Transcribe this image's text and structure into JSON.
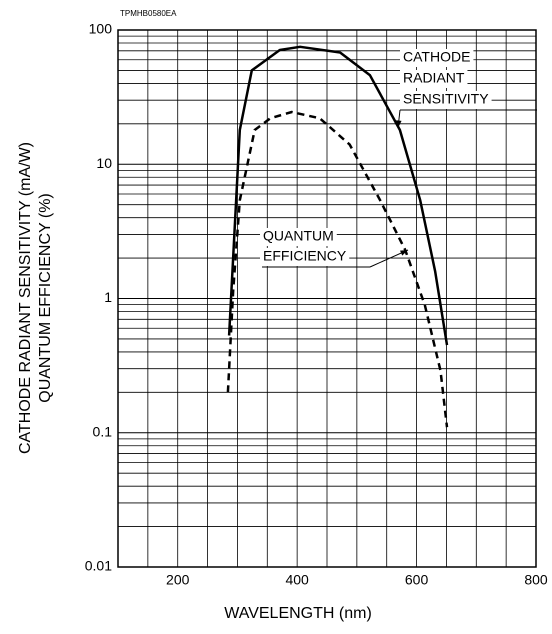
{
  "chart_data": {
    "type": "line",
    "code": "TPMHB0580EA",
    "xlabel": "WAVELENGTH (nm)",
    "ylabel": [
      "CATHODE RADIANT SENSITIVITY (mA/W)",
      "QUANTUM EFFICIENCY (%)"
    ],
    "xlim": [
      100,
      800
    ],
    "xticks": [
      200,
      400,
      600,
      800
    ],
    "xgrid": [
      150,
      200,
      250,
      300,
      350,
      400,
      450,
      500,
      550,
      600,
      650,
      700,
      750
    ],
    "ylim": [
      0.01,
      100
    ],
    "yticks": [
      0.01,
      0.1,
      1,
      10,
      100
    ],
    "log_y": true,
    "grid": true,
    "series": [
      {
        "name": [
          "CATHODE",
          "RADIANT",
          "SENSITIVITY"
        ],
        "color": "#000000",
        "dash": false,
        "x": [
          286,
          304,
          324,
          371,
          405,
          472,
          522,
          572,
          606,
          631,
          651
        ],
        "values": [
          0.53,
          18,
          50,
          71,
          75,
          68,
          46,
          18,
          5.4,
          1.6,
          0.45
        ]
      },
      {
        "name": [
          "QUANTUM",
          "EFFICIENCY"
        ],
        "color": "#000000",
        "dash": true,
        "x": [
          284,
          293,
          304,
          329,
          355,
          391,
          438,
          488,
          539,
          581,
          614,
          640,
          651
        ],
        "values": [
          0.2,
          1.15,
          5.4,
          18,
          22,
          24.5,
          22,
          14,
          5.4,
          2.3,
          0.89,
          0.29,
          0.11
        ]
      }
    ]
  }
}
